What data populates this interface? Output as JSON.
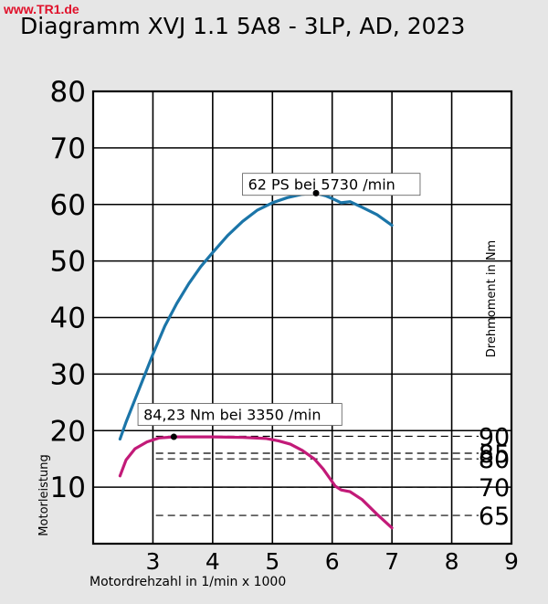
{
  "brand": {
    "text": "www.TR1.de",
    "color": "#e0102a"
  },
  "chart_data": {
    "type": "line",
    "title": "Diagramm XVJ 1.1 5A8 - 3LP, AD, 2023",
    "xlabel": "Motordrehzahl in 1/min x 1000",
    "ylabel": "Motorleistung",
    "y2label": "Drehmoment in Nm",
    "xlim": [
      2,
      9
    ],
    "ylim": [
      0,
      80
    ],
    "x_ticks": [
      3,
      4,
      5,
      6,
      7,
      8,
      9
    ],
    "y_ticks": [
      10,
      20,
      30,
      40,
      50,
      60,
      70,
      80
    ],
    "grid": true,
    "torque_ticks": [
      {
        "label": "90",
        "y": 19
      },
      {
        "label": "85",
        "y": 16
      },
      {
        "label": "80",
        "y": 15
      },
      {
        "label": "70",
        "y": 10
      },
      {
        "label": "65",
        "y": 5
      }
    ],
    "series": [
      {
        "key": "power",
        "color": "#1b75a8",
        "x": [
          2.45,
          2.55,
          2.7,
          2.85,
          3.0,
          3.2,
          3.4,
          3.6,
          3.8,
          4.0,
          4.25,
          4.5,
          4.75,
          5.0,
          5.25,
          5.5,
          5.73,
          5.9,
          6.05,
          6.15,
          6.3,
          6.5,
          6.75,
          7.0
        ],
        "y": [
          18.5,
          21.5,
          25.5,
          29.5,
          33.5,
          38.5,
          42.5,
          46,
          49,
          51.5,
          54.5,
          57,
          59,
          60.3,
          61.2,
          61.8,
          62,
          61.5,
          60.8,
          60.3,
          60.5,
          59.5,
          58.2,
          56.3
        ]
      },
      {
        "key": "torque",
        "color": "#c21a78",
        "x": [
          2.45,
          2.55,
          2.7,
          2.9,
          3.1,
          3.35,
          3.6,
          4.0,
          4.5,
          4.9,
          5.1,
          5.3,
          5.5,
          5.7,
          5.85,
          5.97,
          6.05,
          6.15,
          6.3,
          6.5,
          6.75,
          7.0
        ],
        "y": [
          12,
          14.8,
          16.8,
          18,
          18.7,
          18.9,
          18.9,
          18.9,
          18.8,
          18.6,
          18.2,
          17.6,
          16.5,
          15,
          13.2,
          11.4,
          10.2,
          9.5,
          9.2,
          7.8,
          5.2,
          2.8
        ]
      }
    ],
    "annotations": [
      {
        "text": "62 PS bei 5730 /min",
        "x": 5.73,
        "y": 62,
        "box_x": 4.5,
        "box_y": 65.5
      },
      {
        "text": "84,23 Nm bei 3350 /min",
        "x": 3.35,
        "y": 18.9,
        "box_x": 2.75,
        "box_y": 24.8
      }
    ],
    "torque_annotation_value": "84,23 Nm",
    "power_annotation_value": "62 PS"
  }
}
